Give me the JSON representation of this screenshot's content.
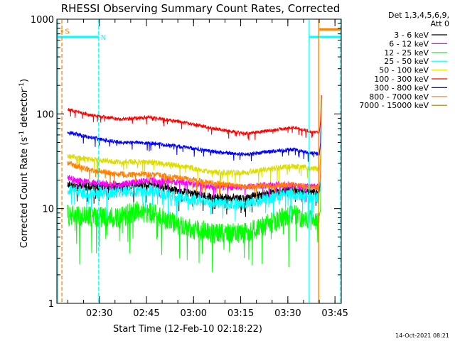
{
  "chart_data": {
    "type": "line",
    "title": "RHESSI Observing Summary Count Rates, Corrected",
    "xlabel": "Start Time (12-Feb-10 02:18:22)",
    "ylabel": "Corrected Count Rate (s",
    "ylabel_sup1": "-1",
    "ylabel_mid": " detector",
    "ylabel_sup2": "-1",
    "ylabel_end": ")",
    "yscale": "log",
    "ylim": [
      1,
      1000
    ],
    "y_ticks": [
      {
        "value": 1,
        "label": "1"
      },
      {
        "value": 10,
        "label": "10"
      },
      {
        "value": 100,
        "label": "100"
      },
      {
        "value": 1000,
        "label": "1000"
      }
    ],
    "xlim_minutes": [
      0,
      90.5
    ],
    "x_ticks": [
      {
        "t": 13.5,
        "label": "02:30"
      },
      {
        "t": 28.5,
        "label": "02:45"
      },
      {
        "t": 43.5,
        "label": "03:00"
      },
      {
        "t": 58.5,
        "label": "03:15"
      },
      {
        "t": 73.5,
        "label": "03:30"
      },
      {
        "t": 88.5,
        "label": "03:45"
      }
    ],
    "legend": {
      "header1": "Det 1,3,4,5,6,9,",
      "header2": "Att 0",
      "placement": "right"
    },
    "series": [
      {
        "name": "3 - 6 keV",
        "color": "#000000",
        "points": [
          [
            3.4,
            18
          ],
          [
            10,
            17
          ],
          [
            20,
            17
          ],
          [
            30,
            18
          ],
          [
            40,
            15
          ],
          [
            50,
            13
          ],
          [
            60,
            13
          ],
          [
            70,
            15
          ],
          [
            75,
            16
          ],
          [
            80,
            15
          ],
          [
            83.5,
            15
          ]
        ]
      },
      {
        "name": "6 - 12 keV",
        "color": "#ff00ff",
        "points": [
          [
            3.4,
            21
          ],
          [
            10,
            19
          ],
          [
            20,
            18
          ],
          [
            30,
            20
          ],
          [
            40,
            19
          ],
          [
            50,
            17
          ],
          [
            60,
            17
          ],
          [
            70,
            18
          ],
          [
            80,
            17
          ],
          [
            83.5,
            17
          ]
        ]
      },
      {
        "name": "12 - 25 keV",
        "color": "#00ff00",
        "points": [
          [
            3.4,
            8.5
          ],
          [
            10,
            8.2
          ],
          [
            20,
            8
          ],
          [
            25,
            9.5
          ],
          [
            30,
            9
          ],
          [
            40,
            6.5
          ],
          [
            50,
            5.5
          ],
          [
            60,
            5.5
          ],
          [
            70,
            7.5
          ],
          [
            75,
            9
          ],
          [
            80,
            7.5
          ],
          [
            83.5,
            7.5
          ]
        ]
      },
      {
        "name": "25 - 50 keV",
        "color": "#00ffff",
        "points": [
          [
            3.4,
            16
          ],
          [
            10,
            14.5
          ],
          [
            20,
            15
          ],
          [
            30,
            15.5
          ],
          [
            40,
            13
          ],
          [
            50,
            11.5
          ],
          [
            60,
            11
          ],
          [
            70,
            13.5
          ],
          [
            75,
            14.5
          ],
          [
            80,
            13
          ],
          [
            83.5,
            13
          ]
        ]
      },
      {
        "name": "50 - 100 keV",
        "color": "#dddd00",
        "points": [
          [
            3.4,
            36
          ],
          [
            10,
            33
          ],
          [
            20,
            31
          ],
          [
            30,
            31
          ],
          [
            40,
            28
          ],
          [
            50,
            24
          ],
          [
            60,
            24
          ],
          [
            70,
            27
          ],
          [
            75,
            28
          ],
          [
            80,
            27
          ],
          [
            83.5,
            26
          ]
        ]
      },
      {
        "name": "100 - 300 keV",
        "color": "#ff0000",
        "points": [
          [
            3.4,
            112
          ],
          [
            10,
            98
          ],
          [
            20,
            88
          ],
          [
            30,
            92
          ],
          [
            40,
            82
          ],
          [
            50,
            70
          ],
          [
            60,
            62
          ],
          [
            70,
            68
          ],
          [
            75,
            72
          ],
          [
            80,
            66
          ],
          [
            83.5,
            63
          ]
        ]
      },
      {
        "name": "300 - 800 keV",
        "color": "#0000ff",
        "points": [
          [
            3.4,
            64
          ],
          [
            10,
            57
          ],
          [
            20,
            50
          ],
          [
            30,
            49
          ],
          [
            40,
            45
          ],
          [
            50,
            40
          ],
          [
            60,
            37
          ],
          [
            70,
            41
          ],
          [
            75,
            42
          ],
          [
            80,
            39
          ],
          [
            83.5,
            38
          ]
        ]
      },
      {
        "name": "800 - 7000 keV",
        "color": "#ff8000",
        "points": [
          [
            3.4,
            30
          ],
          [
            10,
            26
          ],
          [
            20,
            23
          ],
          [
            30,
            23
          ],
          [
            40,
            21
          ],
          [
            50,
            18.5
          ],
          [
            60,
            17
          ],
          [
            70,
            17.5
          ],
          [
            75,
            18
          ],
          [
            80,
            17
          ],
          [
            83.5,
            17
          ]
        ]
      },
      {
        "name": "7000 - 15000 keV",
        "color": "#a08000",
        "points": []
      }
    ],
    "flag_bars": [
      {
        "label": "S",
        "color": "#ff8000",
        "t_start": 1.3,
        "t_end": 1.9,
        "value": 750
      },
      {
        "label": "N",
        "color": "#00ffff",
        "t_start": 0,
        "t_end": 13.3,
        "value": 650
      },
      {
        "label": "",
        "color": "#00ffff",
        "t_start": 80.3,
        "t_end": 90.5,
        "value": 650
      },
      {
        "label": "",
        "color": "#ff8000",
        "t_start": 83.5,
        "t_end": 90.5,
        "value": 780
      }
    ],
    "vertical_lines": [
      {
        "t": 0.3,
        "color": "#00ffff",
        "style": "solid"
      },
      {
        "t": 1.6,
        "color": "#ff8000",
        "style": "dashed"
      },
      {
        "t": 13.3,
        "color": "#00ffff",
        "style": "dashed"
      },
      {
        "t": 80.3,
        "color": "#00ffff",
        "style": "solid"
      },
      {
        "t": 83.3,
        "color": "#ff8000",
        "style": "solid"
      },
      {
        "t": 90.3,
        "color": "#00ffff",
        "style": "dashed"
      }
    ],
    "timestamp": "14-Oct-2021 08:21"
  }
}
